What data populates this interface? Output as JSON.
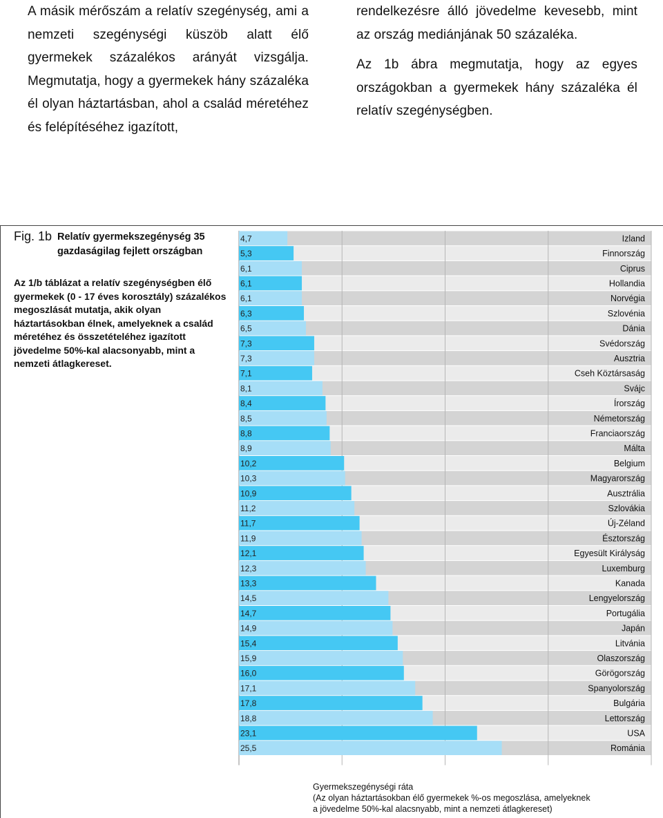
{
  "text": {
    "left_column": "A másik mérőszám a relatív szegénység, ami a nemzeti szegénységi küszöb alatt élő gyermekek százalékos arányát vizsgálja. Megmutatja, hogy a gyermekek hány százaléka él olyan háztartásban, ahol a család méretéhez és felépítéséhez igazított,",
    "right_column_p1": "rendelkezésre álló jövedelme kevesebb, mint az ország mediánjának 50 százaléka.",
    "right_column_p2": "Az 1b ábra megmutatja, hogy az egyes országokban a gyermekek hány százaléka él relatív szegénységben."
  },
  "figure": {
    "label": "Fig. 1b",
    "title": "Relatív gyermekszegénység 35 gazdaságilag fejlett országban",
    "description": "Az 1/b táblázat a relatív szegénységben élő gyermekek (0 - 17 éves korosztály) százalékos megoszlását mutatja, akik olyan háztartásokban élnek, amelyeknek a család méretéhez és összetételéhez igazított jövedelme 50%-kal alacsonyabb, mint a nemzeti átlagkereset.",
    "footer_line1": "Gyermekszegénységi ráta",
    "footer_line2": "(Az olyan háztartásokban élő gyermekek %-os megoszlása, amelyeknek",
    "footer_line3": "a jövedelme 50%-kal alacsnyabb, mint a nemzeti átlagkereset)"
  },
  "colors": {
    "bar_dark": "#45c8f3",
    "bar_light": "#a6def7",
    "band_dark": "#d4d4d4",
    "band_light": "#ebebeb",
    "grid": "#ffffff"
  },
  "chart_data": {
    "type": "bar",
    "orientation": "horizontal",
    "xlim": [
      0,
      40
    ],
    "grid": true,
    "categories": [
      "Izland",
      "Finnország",
      "Ciprus",
      "Hollandia",
      "Norvégia",
      "Szlovénia",
      "Dánia",
      "Svédország",
      "Ausztria",
      "Cseh Köztársaság",
      "Svájc",
      "Írország",
      "Németország",
      "Franciaország",
      "Málta",
      "Belgium",
      "Magyarország",
      "Ausztrália",
      "Szlovákia",
      "Új-Zéland",
      "Észtország",
      "Egyesült Királyság",
      "Luxemburg",
      "Kanada",
      "Lengyelország",
      "Portugália",
      "Japán",
      "Litvánia",
      "Olaszország",
      "Görögország",
      "Spanyolország",
      "Bulgária",
      "Lettország",
      "USA",
      "Románia"
    ],
    "values": [
      4.7,
      5.3,
      6.1,
      6.1,
      6.1,
      6.3,
      6.5,
      7.3,
      7.3,
      7.1,
      8.1,
      8.4,
      8.5,
      8.8,
      8.9,
      10.2,
      10.3,
      10.9,
      11.2,
      11.7,
      11.9,
      12.1,
      12.3,
      13.3,
      14.5,
      14.7,
      14.9,
      15.4,
      15.9,
      16.0,
      17.1,
      17.8,
      18.8,
      23.1,
      25.5
    ],
    "value_labels": [
      "4,7",
      "5,3",
      "6,1",
      "6,1",
      "6,1",
      "6,3",
      "6,5",
      "7,3",
      "7,3",
      "7,1",
      "8,1",
      "8,4",
      "8,5",
      "8,8",
      "8,9",
      "10,2",
      "10,3",
      "10,9",
      "11,2",
      "11,7",
      "11,9",
      "12,1",
      "12,3",
      "13,3",
      "14,5",
      "14,7",
      "14,9",
      "15,4",
      "15,9",
      "16,0",
      "17,1",
      "17,8",
      "18,8",
      "23,1",
      "25,5"
    ]
  }
}
